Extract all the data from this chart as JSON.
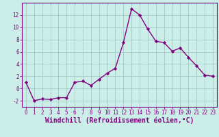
{
  "x": [
    0,
    1,
    2,
    3,
    4,
    5,
    6,
    7,
    8,
    9,
    10,
    11,
    12,
    13,
    14,
    15,
    16,
    17,
    18,
    19,
    20,
    21,
    22,
    23
  ],
  "y": [
    1,
    -2,
    -1.7,
    -1.8,
    -1.5,
    -1.5,
    1.0,
    1.2,
    0.5,
    1.5,
    2.5,
    3.3,
    7.5,
    13.0,
    12.0,
    9.7,
    7.7,
    7.5,
    6.1,
    6.6,
    5.1,
    3.7,
    2.2,
    2.0
  ],
  "line_color": "#800080",
  "marker": "D",
  "marker_size": 2.2,
  "linewidth": 1.0,
  "bg_color": "#cceee8",
  "grid_color": "#aacccc",
  "xlabel": "Windchill (Refroidissement éolien,°C)",
  "xlim": [
    -0.5,
    23.5
  ],
  "ylim": [
    -3,
    14
  ],
  "yticks": [
    -2,
    0,
    2,
    4,
    6,
    8,
    10,
    12
  ],
  "xticks": [
    0,
    1,
    2,
    3,
    4,
    5,
    6,
    7,
    8,
    9,
    10,
    11,
    12,
    13,
    14,
    15,
    16,
    17,
    18,
    19,
    20,
    21,
    22,
    23
  ],
  "tick_color": "#800080",
  "label_color": "#800080",
  "tick_fontsize": 5.5,
  "xlabel_fontsize": 7.0,
  "spine_color": "#800080"
}
